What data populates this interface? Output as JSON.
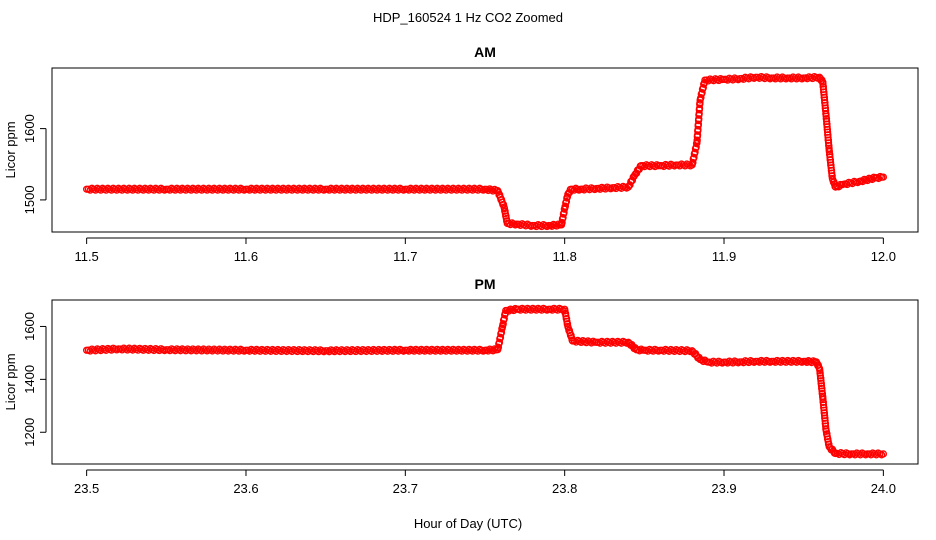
{
  "figure_title": "HDP_160524  1 Hz CO2 Zoomed",
  "xlabel": "Hour of Day (UTC)",
  "colors": {
    "points": "#ff0000",
    "axes": "#000000"
  },
  "chart_data": [
    {
      "type": "scatter",
      "title": "AM",
      "xlabel": "",
      "ylabel": "Licor ppm",
      "xlim": [
        11.5,
        12.0
      ],
      "ylim": [
        1455,
        1685
      ],
      "xticks": [
        "11.5",
        "11.6",
        "11.7",
        "11.8",
        "11.9",
        "12.0"
      ],
      "yticks": [
        "1500",
        "1600"
      ],
      "grid": false,
      "series": [
        {
          "x": [
            11.5,
            11.55,
            11.6,
            11.65,
            11.7,
            11.75,
            11.758,
            11.762,
            11.764,
            11.77,
            11.78,
            11.79,
            11.798,
            11.8,
            11.802,
            11.804,
            11.81,
            11.82,
            11.83,
            11.84,
            11.844,
            11.848,
            11.86,
            11.87,
            11.88,
            11.883,
            11.885,
            11.888,
            11.9,
            11.91,
            11.92,
            11.93,
            11.94,
            11.95,
            11.96,
            11.962,
            11.964,
            11.966,
            11.968,
            11.97,
            11.975,
            11.985,
            11.995,
            12.0
          ],
          "y": [
            1515,
            1515,
            1515,
            1515,
            1515,
            1515,
            1513,
            1490,
            1467,
            1466,
            1464,
            1464,
            1465,
            1488,
            1508,
            1515,
            1515,
            1516,
            1517,
            1518,
            1535,
            1548,
            1548,
            1549,
            1549,
            1580,
            1640,
            1668,
            1669,
            1670,
            1672,
            1671,
            1671,
            1671,
            1672,
            1665,
            1620,
            1570,
            1530,
            1518,
            1522,
            1526,
            1531,
            1532
          ]
        }
      ]
    },
    {
      "type": "scatter",
      "title": "PM",
      "xlabel": "Hour of Day (UTC)",
      "ylabel": "Licor ppm",
      "xlim": [
        23.5,
        24.0
      ],
      "ylim": [
        1080,
        1700
      ],
      "xticks": [
        "23.5",
        "23.6",
        "23.7",
        "23.8",
        "23.9",
        "24.0"
      ],
      "yticks": [
        "1200",
        "1400",
        "1600"
      ],
      "grid": false,
      "series": [
        {
          "x": [
            23.5,
            23.52,
            23.55,
            23.6,
            23.65,
            23.7,
            23.75,
            23.758,
            23.761,
            23.763,
            23.77,
            23.79,
            23.8,
            23.802,
            23.805,
            23.82,
            23.84,
            23.845,
            23.85,
            23.86,
            23.88,
            23.885,
            23.89,
            23.9,
            23.91,
            23.92,
            23.93,
            23.95,
            23.958,
            23.96,
            23.962,
            23.964,
            23.966,
            23.97,
            23.98,
            23.99,
            24.0
          ],
          "y": [
            1510,
            1515,
            1512,
            1510,
            1508,
            1510,
            1510,
            1512,
            1600,
            1660,
            1665,
            1665,
            1665,
            1600,
            1545,
            1540,
            1540,
            1512,
            1510,
            1510,
            1508,
            1475,
            1465,
            1465,
            1466,
            1468,
            1468,
            1468,
            1466,
            1440,
            1330,
            1210,
            1145,
            1120,
            1118,
            1118,
            1118
          ]
        }
      ]
    }
  ]
}
